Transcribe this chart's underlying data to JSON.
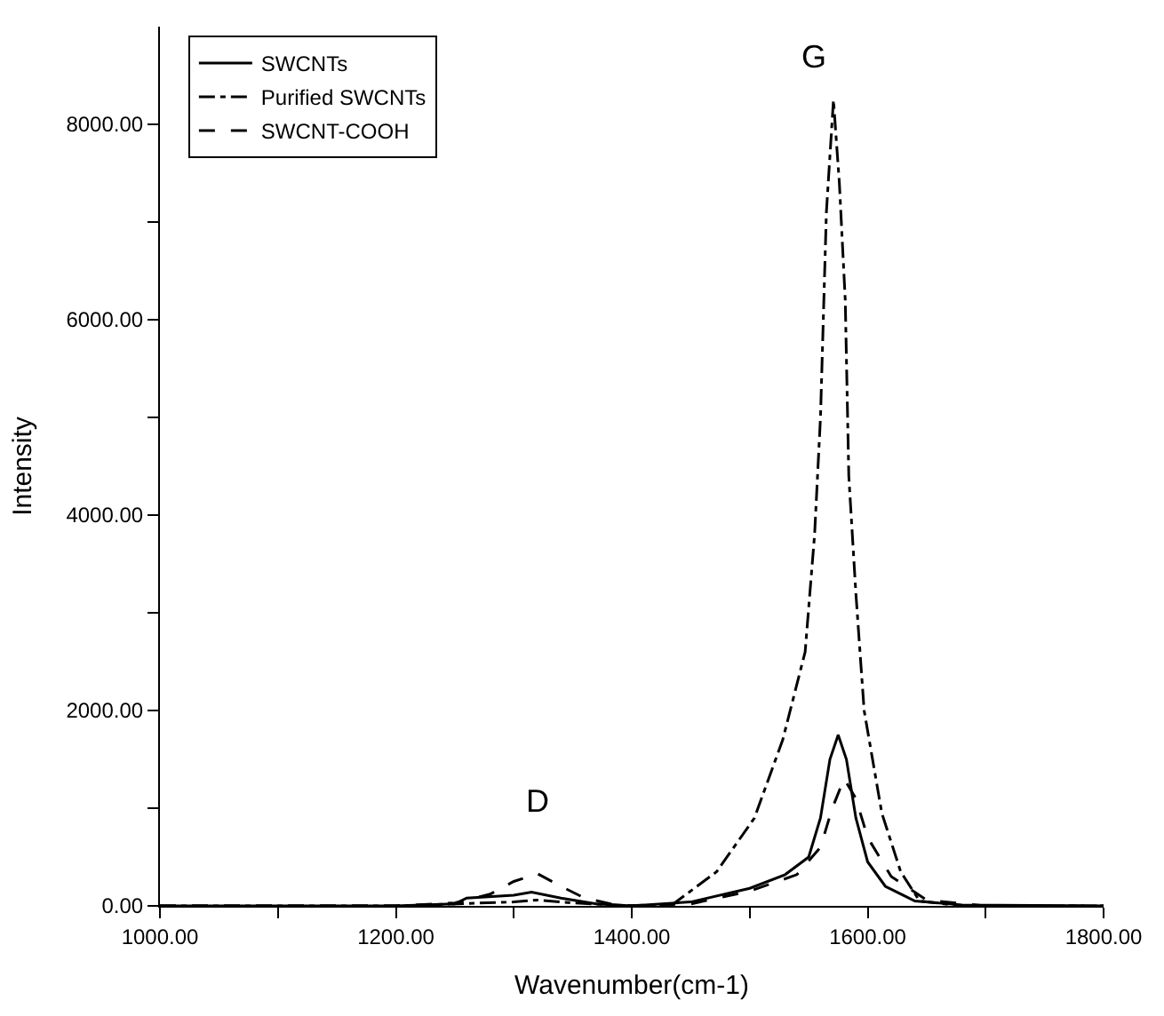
{
  "chart_data": {
    "type": "line",
    "xlabel": "Wavenumber(cm-1)",
    "ylabel": "Intensity",
    "xlim": [
      1000,
      1800
    ],
    "ylim": [
      0,
      9000
    ],
    "xticks": [
      {
        "value": 1000,
        "label": "1000.00"
      },
      {
        "value": 1100,
        "label": null
      },
      {
        "value": 1200,
        "label": "1200.00"
      },
      {
        "value": 1300,
        "label": null
      },
      {
        "value": 1400,
        "label": "1400.00"
      },
      {
        "value": 1500,
        "label": null
      },
      {
        "value": 1600,
        "label": "1600.00"
      },
      {
        "value": 1700,
        "label": null
      },
      {
        "value": 1800,
        "label": "1800.00"
      }
    ],
    "yticks": [
      {
        "value": 0,
        "label": "0.00"
      },
      {
        "value": 1000,
        "label": null
      },
      {
        "value": 2000,
        "label": "2000.00"
      },
      {
        "value": 3000,
        "label": null
      },
      {
        "value": 4000,
        "label": "4000.00"
      },
      {
        "value": 5000,
        "label": null
      },
      {
        "value": 6000,
        "label": "6000.00"
      },
      {
        "value": 7000,
        "label": null
      },
      {
        "value": 8000,
        "label": "8000.00"
      }
    ],
    "legend": "top left",
    "marker": "none",
    "annotations": [
      "D",
      "G"
    ],
    "series": [
      {
        "name": "SWCNTs",
        "color": "#000000",
        "line_style": "solid",
        "x": [
          1000,
          1100,
          1200,
          1250,
          1260,
          1300,
          1315,
          1340,
          1370,
          1400,
          1450,
          1500,
          1530,
          1550,
          1560,
          1568,
          1575,
          1582,
          1590,
          1600,
          1615,
          1640,
          1680,
          1800
        ],
        "values": [
          0,
          0,
          0,
          20,
          80,
          110,
          140,
          80,
          20,
          0,
          40,
          180,
          320,
          500,
          900,
          1500,
          1750,
          1500,
          900,
          450,
          200,
          50,
          10,
          0
        ]
      },
      {
        "name": "Purified SWCNTs",
        "color": "#000000",
        "line_style": "dashdot",
        "x": [
          1000,
          1200,
          1300,
          1320,
          1350,
          1400,
          1433,
          1472,
          1504,
          1528,
          1547,
          1555,
          1560,
          1565,
          1571,
          1576,
          1581,
          1584,
          1590,
          1597,
          1612,
          1628,
          1644,
          1680,
          1800
        ],
        "values": [
          0,
          0,
          40,
          60,
          30,
          0,
          0,
          350,
          900,
          1700,
          2600,
          3800,
          5000,
          7100,
          8250,
          7400,
          6200,
          4400,
          3200,
          2000,
          950,
          350,
          50,
          0,
          0
        ]
      },
      {
        "name": "SWCNT-COOH",
        "color": "#000000",
        "line_style": "dashed",
        "x": [
          1000,
          1200,
          1250,
          1280,
          1300,
          1320,
          1340,
          1360,
          1390,
          1450,
          1500,
          1540,
          1560,
          1570,
          1580,
          1590,
          1600,
          1620,
          1650,
          1700,
          1800
        ],
        "values": [
          0,
          0,
          30,
          120,
          250,
          330,
          200,
          80,
          0,
          20,
          150,
          320,
          600,
          1000,
          1300,
          1100,
          700,
          300,
          60,
          0,
          0
        ]
      }
    ]
  }
}
